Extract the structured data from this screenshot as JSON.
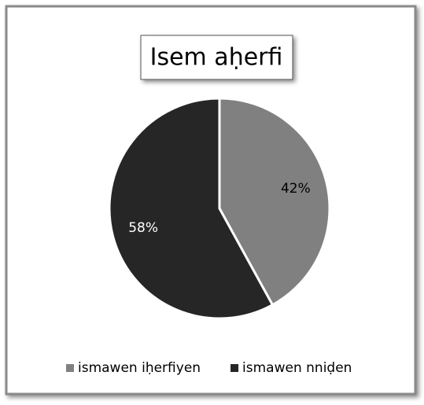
{
  "chart_data": {
    "type": "pie",
    "title": "Isem aḥerfi",
    "categories": [
      "ismawen iḥerfiyen",
      "ismawen nniḍen"
    ],
    "values": [
      42,
      58
    ],
    "value_labels": [
      "42%",
      "58%"
    ],
    "colors": [
      "#808080",
      "#262626"
    ],
    "legend": "bottom"
  }
}
